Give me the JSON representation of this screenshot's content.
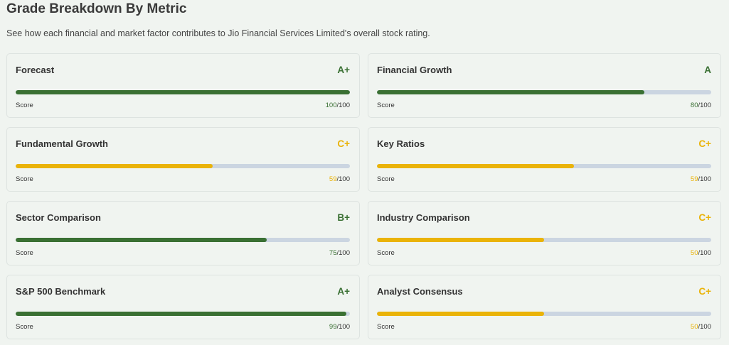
{
  "header": {
    "title": "Grade Breakdown By Metric",
    "subtitle": "See how each financial and market factor contributes to Jio Financial Services Limited's overall stock rating."
  },
  "colors": {
    "green": "#3a7033",
    "yellow": "#eab308",
    "track": "#cbd5e1"
  },
  "metrics": [
    {
      "name": "Forecast",
      "grade": "A+",
      "score": "100",
      "max": "/100",
      "score_label": "Score",
      "pct": 100,
      "color": "green"
    },
    {
      "name": "Financial Growth",
      "grade": "A",
      "score": "80",
      "max": "/100",
      "score_label": "Score",
      "pct": 80,
      "color": "green"
    },
    {
      "name": "Fundamental Growth",
      "grade": "C+",
      "score": "59",
      "max": "/100",
      "score_label": "Score",
      "pct": 59,
      "color": "yellow"
    },
    {
      "name": "Key Ratios",
      "grade": "C+",
      "score": "59",
      "max": "/100",
      "score_label": "Score",
      "pct": 59,
      "color": "yellow"
    },
    {
      "name": "Sector Comparison",
      "grade": "B+",
      "score": "75",
      "max": "/100",
      "score_label": "Score",
      "pct": 75,
      "color": "green"
    },
    {
      "name": "Industry Comparison",
      "grade": "C+",
      "score": "50",
      "max": "/100",
      "score_label": "Score",
      "pct": 50,
      "color": "yellow"
    },
    {
      "name": "S&P 500 Benchmark",
      "grade": "A+",
      "score": "99",
      "max": "/100",
      "score_label": "Score",
      "pct": 99,
      "color": "green"
    },
    {
      "name": "Analyst Consensus",
      "grade": "C+",
      "score": "50",
      "max": "/100",
      "score_label": "Score",
      "pct": 50,
      "color": "yellow"
    }
  ]
}
